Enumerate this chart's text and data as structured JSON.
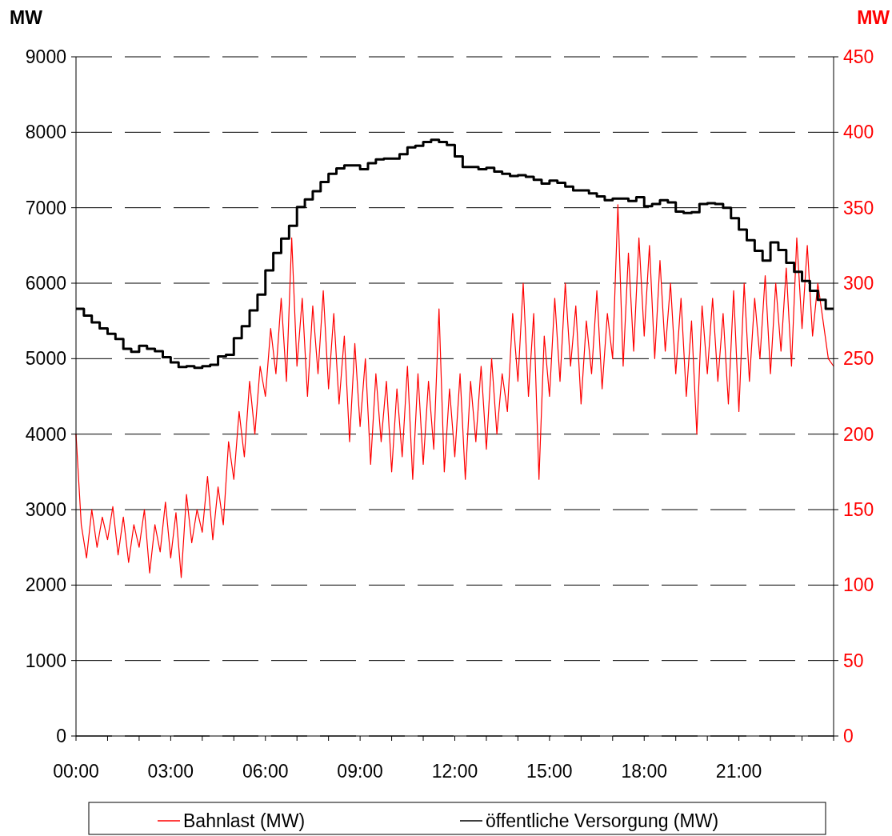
{
  "chart_data": {
    "type": "line",
    "ylabel": "MW",
    "y2label": "MW",
    "xlim": [
      0,
      24
    ],
    "xticks": [
      {
        "value": 0,
        "label": "00:00"
      },
      {
        "value": 1,
        "label": null
      },
      {
        "value": 2,
        "label": null
      },
      {
        "value": 3,
        "label": "03:00"
      },
      {
        "value": 4,
        "label": null
      },
      {
        "value": 5,
        "label": null
      },
      {
        "value": 6,
        "label": "06:00"
      },
      {
        "value": 7,
        "label": null
      },
      {
        "value": 8,
        "label": null
      },
      {
        "value": 9,
        "label": "09:00"
      },
      {
        "value": 10,
        "label": null
      },
      {
        "value": 11,
        "label": null
      },
      {
        "value": 12,
        "label": "12:00"
      },
      {
        "value": 13,
        "label": null
      },
      {
        "value": 14,
        "label": null
      },
      {
        "value": 15,
        "label": "15:00"
      },
      {
        "value": 16,
        "label": null
      },
      {
        "value": 17,
        "label": null
      },
      {
        "value": 18,
        "label": "18:00"
      },
      {
        "value": 19,
        "label": null
      },
      {
        "value": 20,
        "label": null
      },
      {
        "value": 21,
        "label": "21:00"
      },
      {
        "value": 22,
        "label": null
      },
      {
        "value": 23,
        "label": null
      },
      {
        "value": 24,
        "label": null
      }
    ],
    "ylim": [
      0,
      9000
    ],
    "yticks": [
      0,
      1000,
      2000,
      3000,
      4000,
      5000,
      6000,
      7000,
      8000,
      9000
    ],
    "y2lim": [
      0,
      450
    ],
    "y2ticks": [
      0,
      50,
      100,
      150,
      200,
      250,
      300,
      350,
      400,
      450
    ],
    "grid": "y",
    "legend": "bottom",
    "line_style": "solid",
    "marker": "none",
    "series": [
      {
        "name": "Bahnlast (MW)",
        "color": "#ff0000",
        "axis": "y2",
        "x": [
          0,
          0.1667,
          0.3333,
          0.5,
          0.6667,
          0.8333,
          1,
          1.1667,
          1.3333,
          1.5,
          1.6667,
          1.8333,
          2,
          2.1667,
          2.3333,
          2.5,
          2.6667,
          2.8333,
          3,
          3.1667,
          3.3333,
          3.5,
          3.6667,
          3.8333,
          4,
          4.1667,
          4.3333,
          4.5,
          4.6667,
          4.8333,
          5,
          5.1667,
          5.3333,
          5.5,
          5.6667,
          5.8333,
          6,
          6.1667,
          6.3333,
          6.5,
          6.6667,
          6.8333,
          7,
          7.1667,
          7.3333,
          7.5,
          7.6667,
          7.8333,
          8,
          8.1667,
          8.3333,
          8.5,
          8.6667,
          8.8333,
          9,
          9.1667,
          9.3333,
          9.5,
          9.6667,
          9.8333,
          10,
          10.1667,
          10.3333,
          10.5,
          10.6667,
          10.8333,
          11,
          11.1667,
          11.3333,
          11.5,
          11.6667,
          11.8333,
          12,
          12.1667,
          12.3333,
          12.5,
          12.6667,
          12.8333,
          13,
          13.1667,
          13.3333,
          13.5,
          13.6667,
          13.8333,
          14,
          14.1667,
          14.3333,
          14.5,
          14.6667,
          14.8333,
          15,
          15.1667,
          15.3333,
          15.5,
          15.6667,
          15.8333,
          16,
          16.1667,
          16.3333,
          16.5,
          16.6667,
          16.8333,
          17,
          17.1667,
          17.3333,
          17.5,
          17.6667,
          17.8333,
          18,
          18.1667,
          18.3333,
          18.5,
          18.6667,
          18.8333,
          19,
          19.1667,
          19.3333,
          19.5,
          19.6667,
          19.8333,
          20,
          20.1667,
          20.3333,
          20.5,
          20.6667,
          20.8333,
          21,
          21.1667,
          21.3333,
          21.5,
          21.6667,
          21.8333,
          22,
          22.1667,
          22.3333,
          22.5,
          22.6667,
          22.8333,
          23,
          23.1667,
          23.3333,
          23.5,
          23.6667,
          23.8333,
          24
        ],
        "values": [
          200,
          140,
          118,
          150,
          125,
          145,
          130,
          152,
          120,
          145,
          115,
          140,
          125,
          150,
          108,
          140,
          122,
          155,
          118,
          148,
          105,
          160,
          128,
          150,
          135,
          172,
          130,
          165,
          140,
          195,
          170,
          215,
          185,
          235,
          200,
          245,
          225,
          270,
          240,
          290,
          235,
          330,
          245,
          290,
          225,
          285,
          240,
          295,
          230,
          280,
          220,
          265,
          195,
          260,
          205,
          250,
          180,
          240,
          195,
          235,
          175,
          230,
          185,
          245,
          170,
          240,
          180,
          235,
          190,
          283,
          175,
          230,
          185,
          240,
          170,
          235,
          195,
          245,
          190,
          250,
          200,
          240,
          215,
          280,
          235,
          300,
          225,
          280,
          170,
          265,
          225,
          290,
          235,
          300,
          245,
          285,
          220,
          275,
          240,
          295,
          230,
          280,
          250,
          352,
          245,
          320,
          255,
          330,
          265,
          325,
          250,
          315,
          255,
          300,
          240,
          290,
          225,
          275,
          200,
          285,
          240,
          290,
          235,
          280,
          220,
          295,
          215,
          300,
          235,
          290,
          250,
          305,
          240,
          300,
          255,
          310,
          245,
          330,
          270,
          325,
          265,
          300,
          275,
          250,
          245
        ]
      },
      {
        "name": "öffentliche Versorgung (MW)",
        "color": "#000000",
        "type": "step",
        "x": [
          0,
          0.25,
          0.5,
          0.75,
          1,
          1.25,
          1.5,
          1.75,
          2,
          2.25,
          2.5,
          2.75,
          3,
          3.25,
          3.5,
          3.75,
          4,
          4.25,
          4.5,
          4.75,
          5,
          5.25,
          5.5,
          5.75,
          6,
          6.25,
          6.5,
          6.75,
          7,
          7.25,
          7.5,
          7.75,
          8,
          8.25,
          8.5,
          8.75,
          9,
          9.25,
          9.5,
          9.75,
          10,
          10.25,
          10.5,
          10.75,
          11,
          11.25,
          11.5,
          11.75,
          12,
          12.25,
          12.5,
          12.75,
          13,
          13.25,
          13.5,
          13.75,
          14,
          14.25,
          14.5,
          14.75,
          15,
          15.25,
          15.5,
          15.75,
          16,
          16.25,
          16.5,
          16.75,
          17,
          17.25,
          17.5,
          17.75,
          18,
          18.25,
          18.5,
          18.75,
          19,
          19.25,
          19.5,
          19.75,
          20,
          20.25,
          20.5,
          20.75,
          21,
          21.25,
          21.5,
          21.75,
          22,
          22.25,
          22.5,
          22.75,
          23,
          23.25,
          23.5,
          23.75,
          24
        ],
        "values": [
          5660,
          5570,
          5480,
          5400,
          5330,
          5260,
          5130,
          5090,
          5170,
          5130,
          5100,
          5020,
          4950,
          4890,
          4900,
          4880,
          4900,
          4920,
          5030,
          5050,
          5270,
          5430,
          5640,
          5850,
          6170,
          6400,
          6590,
          6760,
          7010,
          7110,
          7220,
          7340,
          7450,
          7520,
          7560,
          7560,
          7510,
          7590,
          7640,
          7650,
          7650,
          7710,
          7800,
          7820,
          7870,
          7900,
          7870,
          7830,
          7680,
          7540,
          7540,
          7510,
          7530,
          7480,
          7450,
          7420,
          7430,
          7410,
          7370,
          7320,
          7360,
          7330,
          7280,
          7230,
          7230,
          7190,
          7150,
          7100,
          7120,
          7120,
          7090,
          7140,
          7020,
          7050,
          7100,
          7070,
          6950,
          6930,
          6940,
          7050,
          7060,
          7050,
          7000,
          6860,
          6710,
          6570,
          6430,
          6300,
          6540,
          6440,
          6270,
          6150,
          6030,
          5900,
          5780,
          5660,
          5660
        ]
      }
    ]
  }
}
